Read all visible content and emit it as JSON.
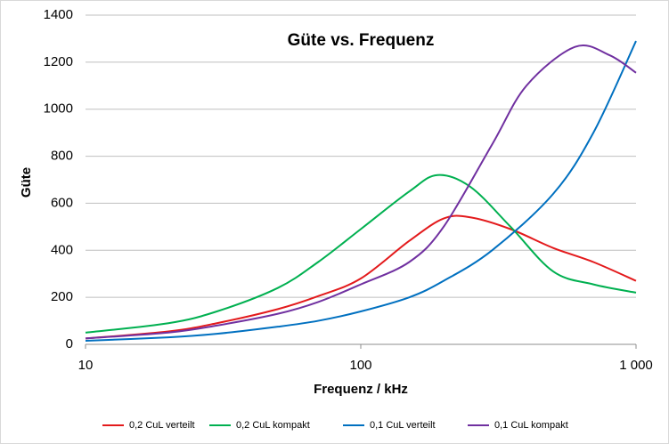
{
  "chart_data": {
    "type": "line",
    "title": "Güte vs. Frequenz",
    "x_label": "Frequenz / kHz",
    "y_label": "Güte",
    "xlog": true,
    "grid": true,
    "legend": "bottom",
    "xlim": [
      10,
      1000
    ],
    "xticks": [
      10,
      100,
      {
        "value": 1000,
        "label": "1 000"
      }
    ],
    "ylim": [
      0,
      1400
    ],
    "yticks": [
      0,
      200,
      400,
      600,
      800,
      1000,
      1200,
      1400
    ],
    "series": [
      {
        "name": "0,2 CuL verteilt",
        "color": "#e31a1c",
        "x": [
          10,
          20,
          30,
          50,
          70,
          100,
          150,
          200,
          250,
          350,
          500,
          700,
          1000
        ],
        "values": [
          25,
          55,
          90,
          150,
          205,
          280,
          440,
          535,
          540,
          490,
          410,
          350,
          270
        ]
      },
      {
        "name": "0,2 CuL kompakt",
        "color": "#00b050",
        "x": [
          10,
          20,
          30,
          50,
          70,
          100,
          150,
          190,
          250,
          350,
          500,
          700,
          1000
        ],
        "values": [
          50,
          90,
          140,
          240,
          350,
          490,
          650,
          720,
          670,
          500,
          310,
          255,
          220
        ]
      },
      {
        "name": "0,1 CuL verteilt",
        "color": "#0070c0",
        "x": [
          10,
          20,
          30,
          50,
          70,
          100,
          150,
          200,
          300,
          500,
          700,
          1000
        ],
        "values": [
          15,
          30,
          45,
          75,
          100,
          140,
          200,
          270,
          400,
          640,
          900,
          1290
        ]
      },
      {
        "name": "0,1 CuL kompakt",
        "color": "#7030a0",
        "x": [
          10,
          20,
          30,
          50,
          70,
          100,
          150,
          200,
          300,
          400,
          600,
          800,
          1000
        ],
        "values": [
          25,
          50,
          80,
          130,
          180,
          255,
          350,
          500,
          850,
          1100,
          1265,
          1230,
          1155
        ]
      }
    ]
  }
}
